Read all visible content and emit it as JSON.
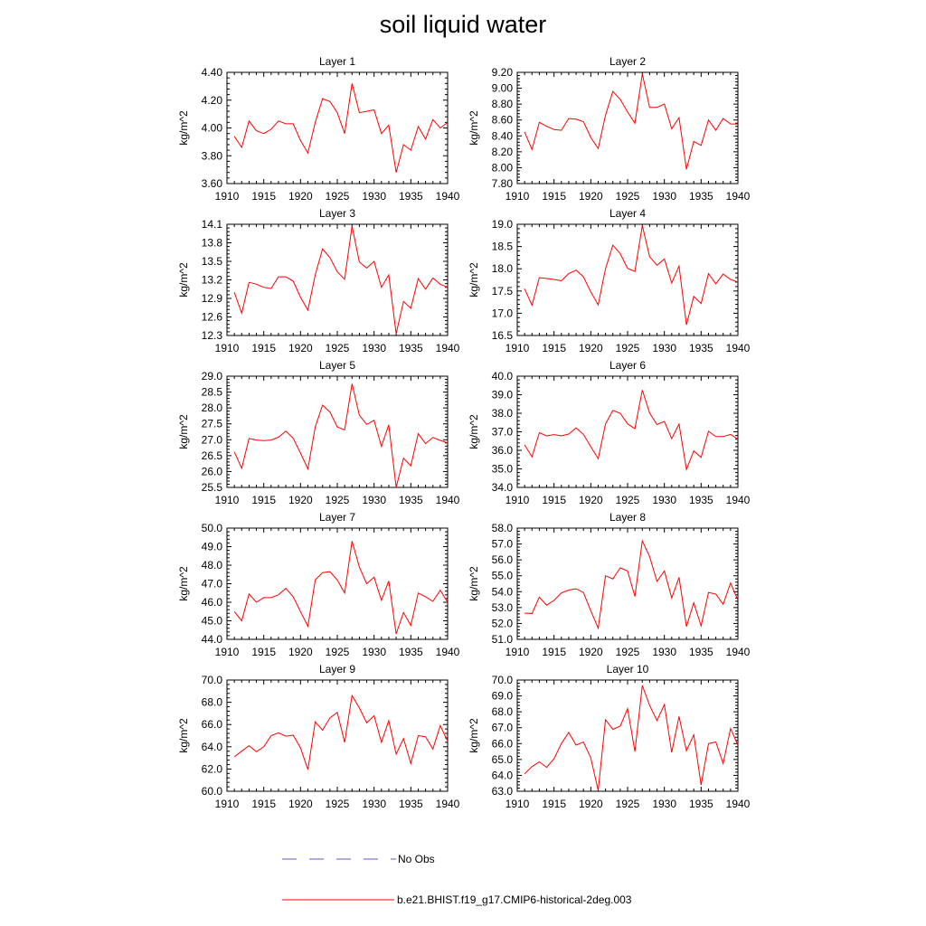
{
  "title": "soil liquid water",
  "legend": {
    "obs_label": "No Obs",
    "obs_color": "#5b5bd6",
    "model_label": "b.e21.BHIST.f19_g17.CMIP6-historical-2deg.003",
    "model_color": "#ff0000"
  },
  "chart_data": [
    {
      "type": "line",
      "title": "Layer 1",
      "ylabel": "kg/m^2",
      "x": [
        1911,
        1912,
        1913,
        1914,
        1915,
        1916,
        1917,
        1918,
        1919,
        1920,
        1921,
        1922,
        1923,
        1924,
        1925,
        1926,
        1927,
        1928,
        1929,
        1930,
        1931,
        1932,
        1933,
        1934,
        1935,
        1936,
        1937,
        1938,
        1939,
        1940
      ],
      "xlim": [
        1910,
        1940
      ],
      "xticks": [
        "1910",
        "1915",
        "1920",
        "1925",
        "1930",
        "1935",
        "1940"
      ],
      "ylim": [
        3.6,
        4.4
      ],
      "yticks": [
        "3.60",
        "3.80",
        "4.00",
        "4.20",
        "4.40"
      ],
      "series": [
        {
          "values": [
            3.94,
            3.86,
            4.05,
            3.98,
            3.96,
            3.99,
            4.05,
            4.03,
            4.03,
            3.91,
            3.82,
            4.04,
            4.21,
            4.19,
            4.11,
            3.96,
            4.32,
            4.11,
            4.12,
            4.13,
            3.96,
            4.02,
            3.68,
            3.88,
            3.84,
            4.01,
            3.92,
            4.06,
            4.0,
            4.04
          ]
        }
      ]
    },
    {
      "type": "line",
      "title": "Layer 2",
      "ylabel": "kg/m^2",
      "x": [
        1911,
        1912,
        1913,
        1914,
        1915,
        1916,
        1917,
        1918,
        1919,
        1920,
        1921,
        1922,
        1923,
        1924,
        1925,
        1926,
        1927,
        1928,
        1929,
        1930,
        1931,
        1932,
        1933,
        1934,
        1935,
        1936,
        1937,
        1938,
        1939,
        1940
      ],
      "xlim": [
        1910,
        1940
      ],
      "xticks": [
        "1910",
        "1915",
        "1920",
        "1925",
        "1930",
        "1935",
        "1940"
      ],
      "ylim": [
        7.8,
        9.2
      ],
      "yticks": [
        "7.80",
        "8.00",
        "8.20",
        "8.40",
        "8.60",
        "8.80",
        "9.00",
        "9.20"
      ],
      "series": [
        {
          "values": [
            8.45,
            8.23,
            8.57,
            8.52,
            8.48,
            8.47,
            8.62,
            8.61,
            8.58,
            8.38,
            8.24,
            8.66,
            8.96,
            8.86,
            8.7,
            8.56,
            9.18,
            8.76,
            8.76,
            8.8,
            8.49,
            8.63,
            7.98,
            8.33,
            8.28,
            8.6,
            8.47,
            8.62,
            8.55,
            8.55
          ]
        }
      ]
    },
    {
      "type": "line",
      "title": "Layer 3",
      "ylabel": "kg/m^2",
      "x": [
        1911,
        1912,
        1913,
        1914,
        1915,
        1916,
        1917,
        1918,
        1919,
        1920,
        1921,
        1922,
        1923,
        1924,
        1925,
        1926,
        1927,
        1928,
        1929,
        1930,
        1931,
        1932,
        1933,
        1934,
        1935,
        1936,
        1937,
        1938,
        1939,
        1940
      ],
      "xlim": [
        1910,
        1940
      ],
      "xticks": [
        "1910",
        "1915",
        "1920",
        "1925",
        "1930",
        "1935",
        "1940"
      ],
      "ylim": [
        12.3,
        14.1
      ],
      "yticks": [
        "12.3",
        "12.6",
        "12.9",
        "13.2",
        "13.5",
        "13.8",
        "14.1"
      ],
      "series": [
        {
          "values": [
            13.0,
            12.66,
            13.16,
            13.13,
            13.08,
            13.06,
            13.25,
            13.25,
            13.18,
            12.92,
            12.71,
            13.28,
            13.7,
            13.56,
            13.33,
            13.21,
            14.07,
            13.49,
            13.39,
            13.5,
            13.08,
            13.28,
            12.33,
            12.85,
            12.74,
            13.22,
            13.05,
            13.23,
            13.13,
            13.08
          ]
        }
      ]
    },
    {
      "type": "line",
      "title": "Layer 4",
      "ylabel": "kg/m^2",
      "x": [
        1911,
        1912,
        1913,
        1914,
        1915,
        1916,
        1917,
        1918,
        1919,
        1920,
        1921,
        1922,
        1923,
        1924,
        1925,
        1926,
        1927,
        1928,
        1929,
        1930,
        1931,
        1932,
        1933,
        1934,
        1935,
        1936,
        1937,
        1938,
        1939,
        1940
      ],
      "xlim": [
        1910,
        1940
      ],
      "xticks": [
        "1910",
        "1915",
        "1920",
        "1925",
        "1930",
        "1935",
        "1940"
      ],
      "ylim": [
        16.5,
        19.0
      ],
      "yticks": [
        "16.5",
        "17.0",
        "17.5",
        "18.0",
        "18.5",
        "19.0"
      ],
      "series": [
        {
          "values": [
            17.55,
            17.18,
            17.8,
            17.78,
            17.76,
            17.73,
            17.89,
            17.97,
            17.82,
            17.48,
            17.19,
            18.0,
            18.53,
            18.34,
            18.01,
            17.94,
            18.97,
            18.27,
            18.08,
            18.22,
            17.68,
            18.06,
            16.74,
            17.38,
            17.22,
            17.89,
            17.66,
            17.88,
            17.76,
            17.7
          ]
        }
      ]
    },
    {
      "type": "line",
      "title": "Layer 5",
      "ylabel": "kg/m^2",
      "x": [
        1911,
        1912,
        1913,
        1914,
        1915,
        1916,
        1917,
        1918,
        1919,
        1920,
        1921,
        1922,
        1923,
        1924,
        1925,
        1926,
        1927,
        1928,
        1929,
        1930,
        1931,
        1932,
        1933,
        1934,
        1935,
        1936,
        1937,
        1938,
        1939,
        1940
      ],
      "xlim": [
        1910,
        1940
      ],
      "xticks": [
        "1910",
        "1915",
        "1920",
        "1925",
        "1930",
        "1935",
        "1940"
      ],
      "ylim": [
        25.5,
        29.0
      ],
      "yticks": [
        "25.5",
        "26.0",
        "26.5",
        "27.0",
        "27.5",
        "28.0",
        "28.5",
        "29.0"
      ],
      "series": [
        {
          "values": [
            26.62,
            26.1,
            27.04,
            26.99,
            26.97,
            26.99,
            27.08,
            27.27,
            27.05,
            26.58,
            26.08,
            27.4,
            28.09,
            27.87,
            27.4,
            27.31,
            28.76,
            27.77,
            27.48,
            27.61,
            26.79,
            27.47,
            25.5,
            26.42,
            26.18,
            27.19,
            26.88,
            27.07,
            26.98,
            26.9
          ]
        }
      ]
    },
    {
      "type": "line",
      "title": "Layer 6",
      "ylabel": "kg/m^2",
      "x": [
        1911,
        1912,
        1913,
        1914,
        1915,
        1916,
        1917,
        1918,
        1919,
        1920,
        1921,
        1922,
        1923,
        1924,
        1925,
        1926,
        1927,
        1928,
        1929,
        1930,
        1931,
        1932,
        1933,
        1934,
        1935,
        1936,
        1937,
        1938,
        1939,
        1940
      ],
      "xlim": [
        1910,
        1940
      ],
      "xticks": [
        "1910",
        "1915",
        "1920",
        "1925",
        "1930",
        "1935",
        "1940"
      ],
      "ylim": [
        34.0,
        40.0
      ],
      "yticks": [
        "34.0",
        "35.0",
        "36.0",
        "37.0",
        "38.0",
        "39.0",
        "40.0"
      ],
      "series": [
        {
          "values": [
            36.3,
            35.65,
            36.95,
            36.78,
            36.85,
            36.78,
            36.88,
            37.21,
            36.86,
            36.2,
            35.55,
            37.42,
            38.15,
            38.0,
            37.43,
            37.17,
            39.25,
            38.01,
            37.39,
            37.56,
            36.63,
            37.42,
            34.97,
            35.97,
            35.62,
            37.03,
            36.74,
            36.74,
            36.86,
            36.6
          ]
        }
      ]
    },
    {
      "type": "line",
      "title": "Layer 7",
      "ylabel": "kg/m^2",
      "x": [
        1911,
        1912,
        1913,
        1914,
        1915,
        1916,
        1917,
        1918,
        1919,
        1920,
        1921,
        1922,
        1923,
        1924,
        1925,
        1926,
        1927,
        1928,
        1929,
        1930,
        1931,
        1932,
        1933,
        1934,
        1935,
        1936,
        1937,
        1938,
        1939,
        1940
      ],
      "xlim": [
        1910,
        1940
      ],
      "xticks": [
        "1910",
        "1915",
        "1920",
        "1925",
        "1930",
        "1935",
        "1940"
      ],
      "ylim": [
        44.0,
        50.0
      ],
      "yticks": [
        "44.0",
        "45.0",
        "46.0",
        "47.0",
        "48.0",
        "49.0",
        "50.0"
      ],
      "series": [
        {
          "values": [
            45.5,
            45.0,
            46.45,
            46.0,
            46.25,
            46.25,
            46.4,
            46.75,
            46.3,
            45.5,
            44.7,
            47.2,
            47.6,
            47.65,
            47.2,
            46.5,
            49.3,
            47.9,
            47.0,
            47.35,
            46.1,
            47.15,
            44.3,
            45.45,
            44.75,
            46.5,
            46.3,
            46.05,
            46.65,
            46.0
          ]
        }
      ]
    },
    {
      "type": "line",
      "title": "Layer 8",
      "ylabel": "kg/m^2",
      "x": [
        1911,
        1912,
        1913,
        1914,
        1915,
        1916,
        1917,
        1918,
        1919,
        1920,
        1921,
        1922,
        1923,
        1924,
        1925,
        1926,
        1927,
        1928,
        1929,
        1930,
        1931,
        1932,
        1933,
        1934,
        1935,
        1936,
        1937,
        1938,
        1939,
        1940
      ],
      "xlim": [
        1910,
        1940
      ],
      "xticks": [
        "1910",
        "1915",
        "1920",
        "1925",
        "1930",
        "1935",
        "1940"
      ],
      "ylim": [
        51.0,
        58.0
      ],
      "yticks": [
        "51.0",
        "52.0",
        "53.0",
        "54.0",
        "55.0",
        "56.0",
        "57.0",
        "58.0"
      ],
      "series": [
        {
          "values": [
            52.65,
            52.62,
            53.65,
            53.15,
            53.45,
            53.92,
            54.1,
            54.18,
            53.95,
            52.8,
            51.7,
            55.0,
            54.8,
            55.5,
            55.3,
            53.7,
            57.2,
            56.2,
            54.65,
            55.3,
            53.6,
            54.9,
            51.8,
            53.3,
            51.85,
            53.95,
            53.85,
            53.2,
            54.55,
            53.45
          ]
        }
      ]
    },
    {
      "type": "line",
      "title": "Layer 9",
      "ylabel": "kg/m^2",
      "x": [
        1911,
        1912,
        1913,
        1914,
        1915,
        1916,
        1917,
        1918,
        1919,
        1920,
        1921,
        1922,
        1923,
        1924,
        1925,
        1926,
        1927,
        1928,
        1929,
        1930,
        1931,
        1932,
        1933,
        1934,
        1935,
        1936,
        1937,
        1938,
        1939,
        1940
      ],
      "xlim": [
        1910,
        1940
      ],
      "xticks": [
        "1910",
        "1915",
        "1920",
        "1925",
        "1930",
        "1935",
        "1940"
      ],
      "ylim": [
        60.0,
        70.0
      ],
      "yticks": [
        "60.0",
        "62.0",
        "64.0",
        "66.0",
        "68.0",
        "70.0"
      ],
      "series": [
        {
          "values": [
            63.1,
            63.6,
            64.1,
            63.55,
            64.0,
            65.0,
            65.25,
            64.95,
            65.05,
            63.9,
            61.95,
            66.25,
            65.5,
            66.6,
            67.1,
            64.4,
            68.6,
            67.5,
            66.15,
            66.8,
            64.4,
            66.35,
            63.35,
            64.75,
            62.5,
            65.0,
            64.9,
            63.8,
            65.9,
            64.5
          ]
        }
      ]
    },
    {
      "type": "line",
      "title": "Layer 10",
      "ylabel": "kg/m^2",
      "x": [
        1911,
        1912,
        1913,
        1914,
        1915,
        1916,
        1917,
        1918,
        1919,
        1920,
        1921,
        1922,
        1923,
        1924,
        1925,
        1926,
        1927,
        1928,
        1929,
        1930,
        1931,
        1932,
        1933,
        1934,
        1935,
        1936,
        1937,
        1938,
        1939,
        1940
      ],
      "xlim": [
        1910,
        1940
      ],
      "xticks": [
        "1910",
        "1915",
        "1920",
        "1925",
        "1930",
        "1935",
        "1940"
      ],
      "ylim": [
        63.0,
        70.0
      ],
      "yticks": [
        "63.0",
        "64.0",
        "65.0",
        "66.0",
        "67.0",
        "68.0",
        "69.0",
        "70.0"
      ],
      "series": [
        {
          "values": [
            64.1,
            64.55,
            64.85,
            64.5,
            65.05,
            66.0,
            66.7,
            65.9,
            66.1,
            65.1,
            63.05,
            67.5,
            66.9,
            67.1,
            68.2,
            65.5,
            69.65,
            68.4,
            67.45,
            68.45,
            65.45,
            67.7,
            65.55,
            66.55,
            63.4,
            66.0,
            66.1,
            64.75,
            66.95,
            65.9
          ]
        }
      ]
    }
  ]
}
